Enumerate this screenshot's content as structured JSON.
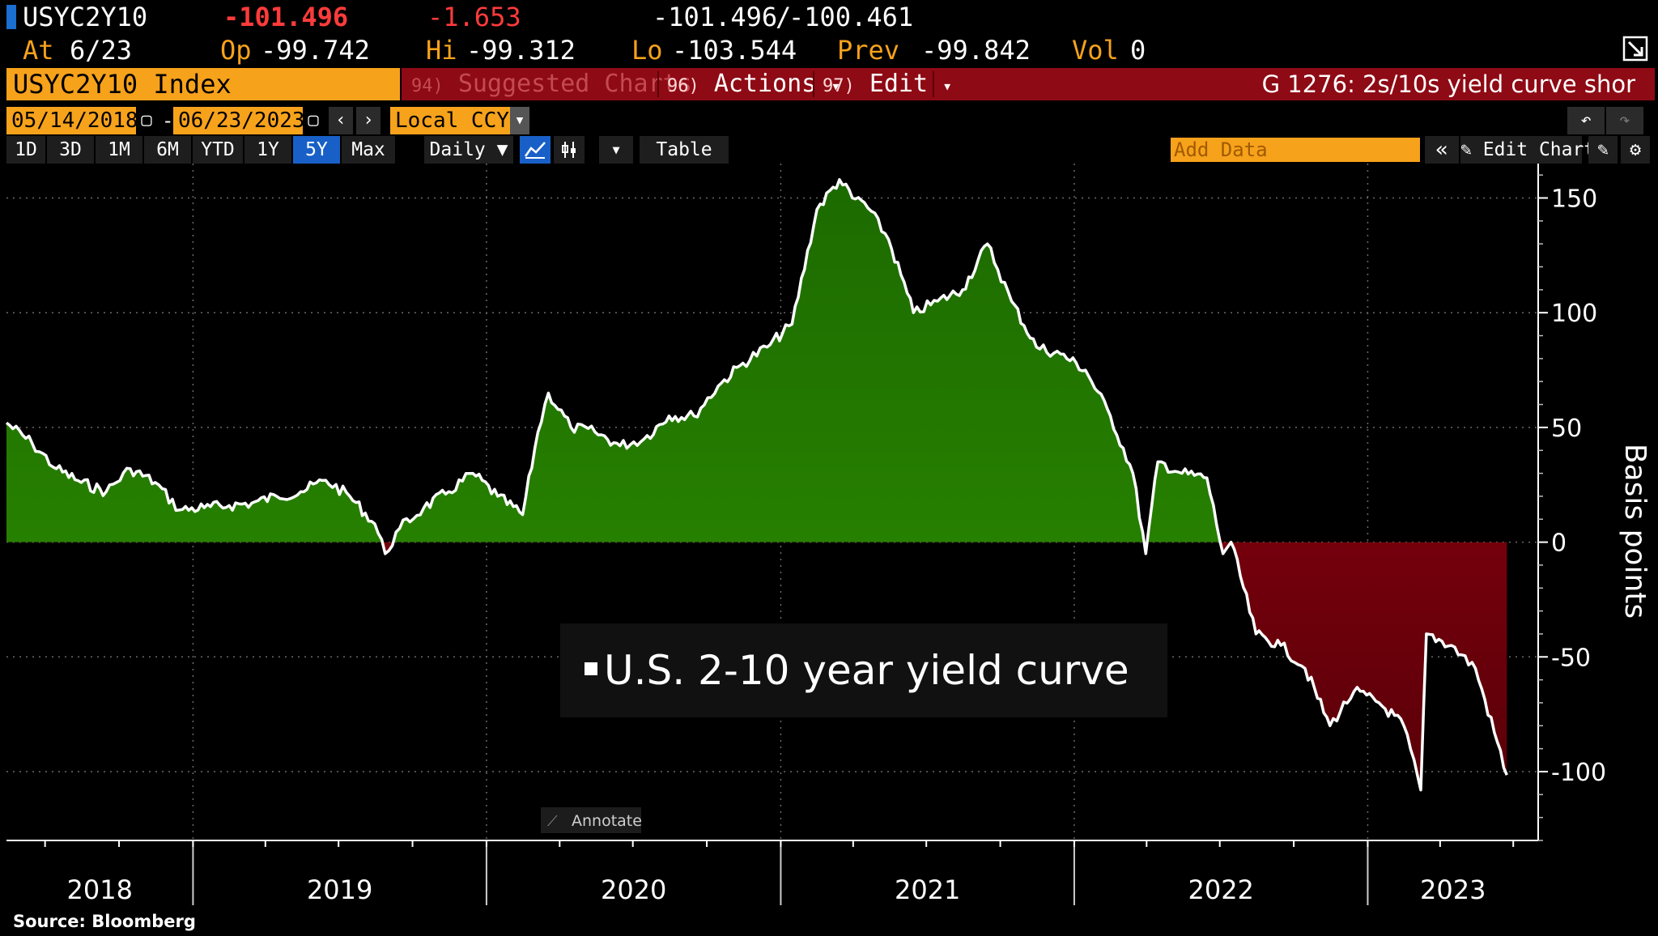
{
  "header": {
    "ticker": "USYC2Y10",
    "last": "-101.496",
    "change": "-1.653",
    "bid": "-101.496",
    "ask": "-100.461",
    "bid_ask_sep": "/",
    "at_label": "At",
    "at_value": "6/23",
    "op_label": "Op",
    "op_value": "-99.742",
    "hi_label": "Hi",
    "hi_value": "-99.312",
    "lo_label": "Lo",
    "lo_value": "-103.544",
    "prev_label": "Prev",
    "prev_value": "-99.842",
    "vol_label": "Vol",
    "vol_value": "0"
  },
  "menubar": {
    "security": "USYC2Y10 Index",
    "suggested_num": "94)",
    "suggested": "Suggested Charts",
    "actions_num": "96)",
    "actions": "Actions",
    "edit_num": "97)",
    "edit": "Edit",
    "dropdown": "▾",
    "graph_title": "G 1276: 2s/10s yield curve shor"
  },
  "dates": {
    "start": "05/14/2018",
    "dash": "-",
    "end": "06/23/2023",
    "currency": "Local CCY"
  },
  "toolbar": {
    "periods": [
      "1D",
      "3D",
      "1M",
      "6M",
      "YTD",
      "1Y",
      "5Y",
      "Max"
    ],
    "active_period": "5Y",
    "frequency": "Daily ▼",
    "table": "Table",
    "add_data_placeholder": "Add Data",
    "edit_chart": "Edit Chart"
  },
  "chart_data": {
    "type": "area",
    "series": [
      {
        "name": "U.S. 2-10 year yield curve",
        "x": [
          "2018-05-14",
          "2018-06-15",
          "2018-07-15",
          "2018-08-15",
          "2018-09-15",
          "2018-10-15",
          "2018-11-15",
          "2018-12-15",
          "2019-01-15",
          "2019-02-15",
          "2019-03-15",
          "2019-04-15",
          "2019-05-15",
          "2019-06-15",
          "2019-07-15",
          "2019-08-15",
          "2019-08-28",
          "2019-09-15",
          "2019-10-15",
          "2019-11-15",
          "2019-12-15",
          "2020-01-15",
          "2020-02-15",
          "2020-03-05",
          "2020-03-18",
          "2020-04-15",
          "2020-05-15",
          "2020-06-15",
          "2020-07-15",
          "2020-08-15",
          "2020-09-15",
          "2020-10-15",
          "2020-11-15",
          "2020-12-15",
          "2021-01-15",
          "2021-02-15",
          "2021-03-15",
          "2021-03-31",
          "2021-04-15",
          "2021-05-15",
          "2021-06-15",
          "2021-07-15",
          "2021-08-15",
          "2021-09-15",
          "2021-10-15",
          "2021-11-15",
          "2021-12-15",
          "2022-01-15",
          "2022-02-15",
          "2022-03-15",
          "2022-03-31",
          "2022-04-15",
          "2022-05-15",
          "2022-06-15",
          "2022-07-05",
          "2022-07-15",
          "2022-08-15",
          "2022-09-15",
          "2022-10-15",
          "2022-11-15",
          "2022-12-15",
          "2023-01-15",
          "2023-02-15",
          "2023-03-08",
          "2023-03-15",
          "2023-04-15",
          "2023-05-15",
          "2023-06-23"
        ],
        "y": [
          52,
          43,
          32,
          26,
          22,
          32,
          26,
          14,
          15,
          16,
          17,
          20,
          22,
          27,
          20,
          8,
          -5,
          6,
          15,
          22,
          30,
          20,
          12,
          48,
          65,
          50,
          48,
          42,
          45,
          55,
          55,
          68,
          78,
          85,
          95,
          145,
          158,
          150,
          148,
          132,
          100,
          105,
          110,
          130,
          105,
          85,
          82,
          75,
          55,
          30,
          -5,
          35,
          30,
          28,
          -5,
          0,
          -40,
          -45,
          -55,
          -80,
          -65,
          -70,
          -80,
          -108,
          -40,
          -45,
          -55,
          -101.5
        ]
      }
    ],
    "ylabel": "Basis points",
    "yticks": [
      -100,
      -50,
      0,
      50,
      100,
      150
    ],
    "ylim": [
      -130,
      165
    ],
    "xticks": [
      "2018",
      "2019",
      "2020",
      "2021",
      "2022",
      "2023"
    ],
    "xlim": [
      "2018-05-14",
      "2023-08-01"
    ],
    "positive_fill": "#2a8400",
    "negative_fill": "#8a0010",
    "line_color": "#ffffff",
    "legend_position": "center-bottom",
    "annotate_label": "Annotate",
    "source": "Source: Bloomberg",
    "grid": true
  }
}
